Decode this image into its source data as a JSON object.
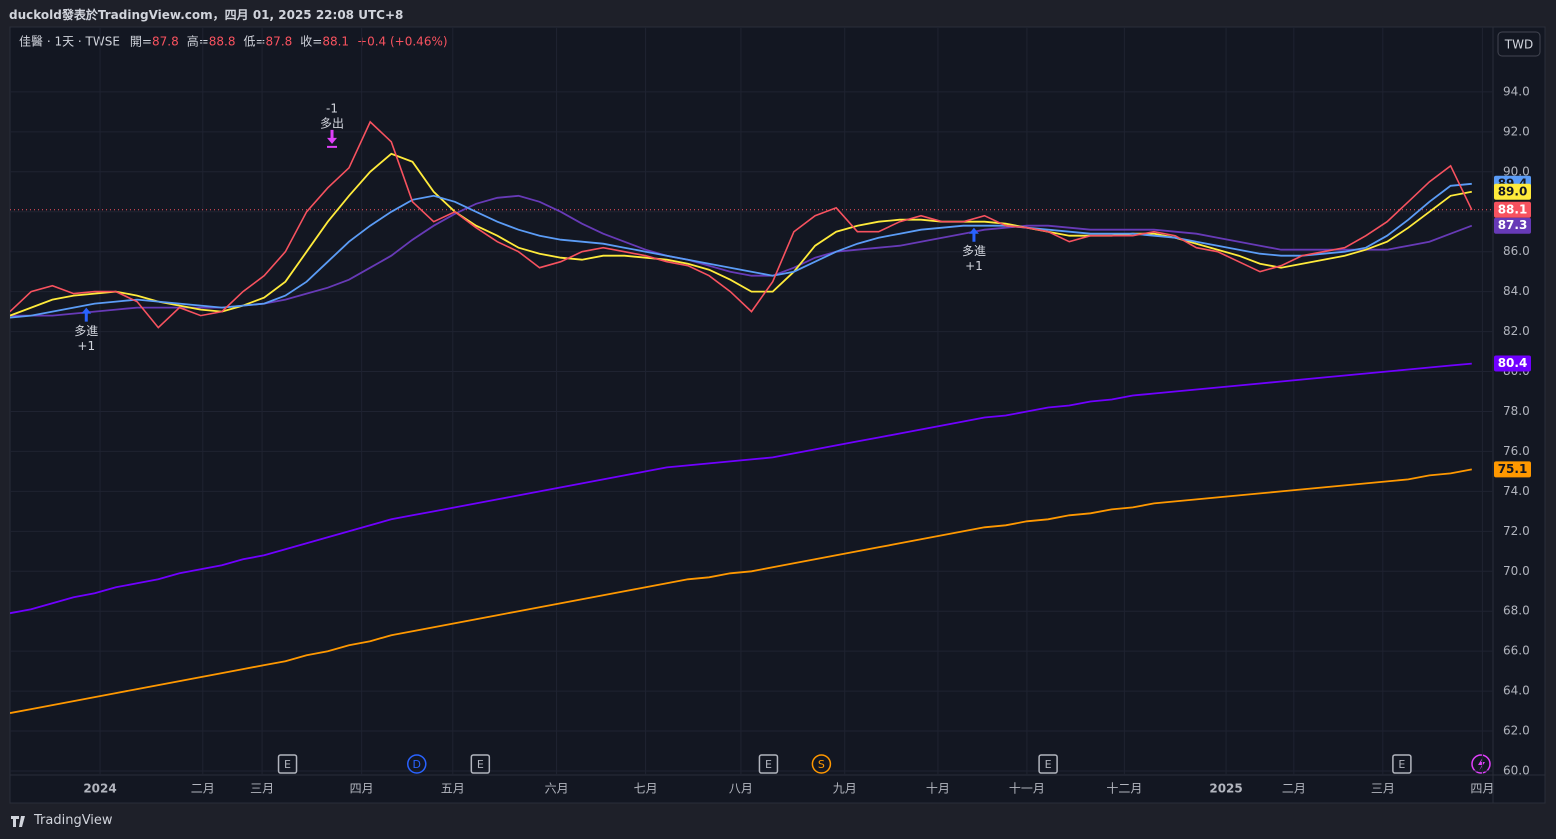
{
  "header": {
    "publisher": "duckold發表於TradingView.com，四月 01, 2025 22:08 UTC+8",
    "footer": "TradingView",
    "currency": "TWD",
    "symbol": "佳醫 · 1天 · TWSE",
    "ohlc": [
      {
        "label": "開=",
        "value": 87.8
      },
      {
        "label": "高=",
        "value": 88.8
      },
      {
        "label": "低=",
        "value": 87.8
      },
      {
        "label": "收=",
        "value": 88.1
      }
    ],
    "change": "+0.4 (+0.46%)"
  },
  "chart_data": {
    "type": "line",
    "grid": true,
    "x": [
      0,
      1,
      2,
      3,
      4,
      5,
      6,
      7,
      8,
      9,
      10,
      11,
      12,
      13,
      14,
      15,
      16,
      17,
      18,
      19,
      20,
      21,
      22,
      23,
      24,
      25,
      26,
      27,
      28,
      29,
      30,
      31,
      32,
      33,
      34,
      35,
      36,
      37,
      38,
      39,
      40,
      41,
      42,
      43,
      44,
      45,
      46,
      47,
      48,
      49,
      50,
      51,
      52,
      53,
      54,
      55,
      56,
      57,
      58,
      59,
      60,
      61,
      62,
      63,
      64,
      65,
      66,
      67,
      68,
      69
    ],
    "xlim": [
      0,
      70
    ],
    "xticks": [
      {
        "value": 4.25,
        "label": "2024"
      },
      {
        "value": 9.1,
        "label": "二月"
      },
      {
        "value": 11.9,
        "label": "三月"
      },
      {
        "value": 16.6,
        "label": "四月"
      },
      {
        "value": 20.9,
        "label": "五月"
      },
      {
        "value": 25.8,
        "label": "六月"
      },
      {
        "value": 30.0,
        "label": "七月"
      },
      {
        "value": 34.5,
        "label": "八月"
      },
      {
        "value": 39.4,
        "label": "九月"
      },
      {
        "value": 43.8,
        "label": "十月"
      },
      {
        "value": 48.0,
        "label": "十一月"
      },
      {
        "value": 52.6,
        "label": "十二月"
      },
      {
        "value": 57.4,
        "label": "2025"
      },
      {
        "value": 60.6,
        "label": "二月"
      },
      {
        "value": 64.8,
        "label": "三月"
      },
      {
        "value": 69.5,
        "label": "四月"
      }
    ],
    "ylim": [
      59.8,
      97.25
    ],
    "yticks": [
      {
        "value": 60,
        "label": "60.0"
      },
      {
        "value": 62,
        "label": "62.0"
      },
      {
        "value": 64,
        "label": "64.0"
      },
      {
        "value": 66,
        "label": "66.0"
      },
      {
        "value": 68,
        "label": "68.0"
      },
      {
        "value": 70,
        "label": "70.0"
      },
      {
        "value": 72,
        "label": "72.0"
      },
      {
        "value": 74,
        "label": "74.0"
      },
      {
        "value": 76,
        "label": "76.0"
      },
      {
        "value": 78,
        "label": "78.0"
      },
      {
        "value": 80,
        "label": "80.0"
      },
      {
        "value": 82,
        "label": "82.0"
      },
      {
        "value": 84,
        "label": "84.0"
      },
      {
        "value": 86,
        "label": "86.0"
      },
      {
        "value": 88,
        "label": "88.0"
      },
      {
        "value": 90,
        "label": "90.0"
      },
      {
        "value": 92,
        "label": "92.0"
      },
      {
        "value": 94,
        "label": "94.0"
      }
    ],
    "series": [
      {
        "color": "#f7525f",
        "tag_text": "#ffffff",
        "last_value_label": "88.1",
        "values": [
          83.0,
          84.0,
          84.3,
          83.9,
          84.0,
          84.0,
          83.5,
          82.2,
          83.2,
          82.8,
          83.0,
          84.0,
          84.8,
          86.0,
          88.0,
          89.2,
          90.2,
          92.5,
          91.5,
          88.5,
          87.5,
          88.0,
          87.2,
          86.5,
          86.0,
          85.2,
          85.5,
          86.0,
          86.2,
          86.0,
          85.8,
          85.5,
          85.3,
          84.8,
          84.0,
          83.0,
          84.5,
          87.0,
          87.8,
          88.2,
          87.0,
          87.0,
          87.5,
          87.8,
          87.5,
          87.5,
          87.8,
          87.3,
          87.2,
          87.0,
          86.5,
          86.8,
          86.8,
          86.8,
          87.0,
          86.8,
          86.2,
          86.0,
          85.5,
          85.0,
          85.3,
          85.8,
          86.0,
          86.2,
          86.8,
          87.5,
          88.5,
          89.5,
          90.3,
          88.1
        ]
      },
      {
        "color": "#5b9cf6",
        "tag_text": "#131722",
        "last_value_label": "89.4",
        "values": [
          82.7,
          82.8,
          83.0,
          83.2,
          83.4,
          83.5,
          83.6,
          83.5,
          83.4,
          83.3,
          83.2,
          83.3,
          83.4,
          83.8,
          84.5,
          85.5,
          86.5,
          87.3,
          88.0,
          88.6,
          88.8,
          88.5,
          88.0,
          87.5,
          87.1,
          86.8,
          86.6,
          86.5,
          86.4,
          86.2,
          86.0,
          85.8,
          85.6,
          85.4,
          85.2,
          85.0,
          84.8,
          85.0,
          85.5,
          86.0,
          86.4,
          86.7,
          86.9,
          87.1,
          87.2,
          87.3,
          87.3,
          87.3,
          87.2,
          87.1,
          87.0,
          86.9,
          86.9,
          86.9,
          86.8,
          86.7,
          86.5,
          86.3,
          86.1,
          85.9,
          85.8,
          85.8,
          85.9,
          86.0,
          86.2,
          86.8,
          87.6,
          88.5,
          89.3,
          89.4
        ]
      },
      {
        "color": "#ffeb3b",
        "tag_text": "#131722",
        "last_value_label": "89.0",
        "values": [
          82.8,
          83.2,
          83.6,
          83.8,
          83.9,
          84.0,
          83.8,
          83.5,
          83.3,
          83.1,
          83.0,
          83.3,
          83.7,
          84.5,
          86.0,
          87.5,
          88.8,
          90.0,
          90.9,
          90.5,
          89.0,
          88.0,
          87.3,
          86.8,
          86.2,
          85.9,
          85.7,
          85.6,
          85.8,
          85.8,
          85.7,
          85.6,
          85.4,
          85.1,
          84.6,
          84.0,
          84.0,
          85.0,
          86.3,
          87.0,
          87.3,
          87.5,
          87.6,
          87.6,
          87.5,
          87.5,
          87.5,
          87.4,
          87.2,
          87.0,
          86.8,
          86.8,
          86.8,
          86.9,
          86.9,
          86.7,
          86.4,
          86.1,
          85.8,
          85.4,
          85.2,
          85.4,
          85.6,
          85.8,
          86.1,
          86.5,
          87.2,
          88.0,
          88.8,
          89.0
        ]
      },
      {
        "color": "#673ab7",
        "tag_text": "#ffffff",
        "last_value_label": "87.3",
        "values": [
          82.8,
          82.8,
          82.8,
          82.9,
          83.0,
          83.1,
          83.2,
          83.2,
          83.2,
          83.2,
          83.2,
          83.3,
          83.4,
          83.6,
          83.9,
          84.2,
          84.6,
          85.2,
          85.8,
          86.6,
          87.3,
          87.9,
          88.4,
          88.7,
          88.8,
          88.5,
          88.0,
          87.4,
          86.9,
          86.5,
          86.1,
          85.8,
          85.6,
          85.3,
          85.0,
          84.8,
          84.8,
          85.2,
          85.7,
          86.0,
          86.1,
          86.2,
          86.3,
          86.5,
          86.7,
          86.9,
          87.1,
          87.2,
          87.3,
          87.3,
          87.2,
          87.1,
          87.1,
          87.1,
          87.1,
          87.0,
          86.9,
          86.7,
          86.5,
          86.3,
          86.1,
          86.1,
          86.1,
          86.1,
          86.1,
          86.1,
          86.3,
          86.5,
          86.9,
          87.3
        ]
      },
      {
        "color": "#7000ff",
        "tag_text": "#ffffff",
        "last_value_label": "80.4",
        "values": [
          67.9,
          68.1,
          68.4,
          68.7,
          68.9,
          69.2,
          69.4,
          69.6,
          69.9,
          70.1,
          70.3,
          70.6,
          70.8,
          71.1,
          71.4,
          71.7,
          72.0,
          72.3,
          72.6,
          72.8,
          73.0,
          73.2,
          73.4,
          73.6,
          73.8,
          74.0,
          74.2,
          74.4,
          74.6,
          74.8,
          75.0,
          75.2,
          75.3,
          75.4,
          75.5,
          75.6,
          75.7,
          75.9,
          76.1,
          76.3,
          76.5,
          76.7,
          76.9,
          77.1,
          77.3,
          77.5,
          77.7,
          77.8,
          78.0,
          78.2,
          78.3,
          78.5,
          78.6,
          78.8,
          78.9,
          79.0,
          79.1,
          79.2,
          79.3,
          79.4,
          79.5,
          79.6,
          79.7,
          79.8,
          79.9,
          80.0,
          80.1,
          80.2,
          80.3,
          80.4
        ]
      },
      {
        "color": "#ff9800",
        "tag_text": "#131722",
        "last_value_label": "75.1",
        "values": [
          62.9,
          63.1,
          63.3,
          63.5,
          63.7,
          63.9,
          64.1,
          64.3,
          64.5,
          64.7,
          64.9,
          65.1,
          65.3,
          65.5,
          65.8,
          66.0,
          66.3,
          66.5,
          66.8,
          67.0,
          67.2,
          67.4,
          67.6,
          67.8,
          68.0,
          68.2,
          68.4,
          68.6,
          68.8,
          69.0,
          69.2,
          69.4,
          69.6,
          69.7,
          69.9,
          70.0,
          70.2,
          70.4,
          70.6,
          70.8,
          71.0,
          71.2,
          71.4,
          71.6,
          71.8,
          72.0,
          72.2,
          72.3,
          72.5,
          72.6,
          72.8,
          72.9,
          73.1,
          73.2,
          73.4,
          73.5,
          73.6,
          73.7,
          73.8,
          73.9,
          74.0,
          74.1,
          74.2,
          74.3,
          74.4,
          74.5,
          74.6,
          74.8,
          74.9,
          75.1
        ]
      }
    ],
    "annotations": [
      {
        "x": 3.6,
        "y": 83.2,
        "direction": "up",
        "color": "#2962ff",
        "lines": [
          "多進",
          "+1"
        ]
      },
      {
        "x": 15.2,
        "y": 91.4,
        "direction": "down",
        "color": "#e040fb",
        "lines": [
          "-1",
          "多出"
        ]
      },
      {
        "x": 45.5,
        "y": 87.2,
        "direction": "up",
        "color": "#2962ff",
        "lines": [
          "多進",
          "+1"
        ]
      }
    ],
    "events": [
      {
        "x": 13.1,
        "label": "E",
        "color": "#b2b5be",
        "shape": "box"
      },
      {
        "x": 19.2,
        "label": "D",
        "color": "#2962ff",
        "shape": "circle"
      },
      {
        "x": 22.2,
        "label": "E",
        "color": "#b2b5be",
        "shape": "box"
      },
      {
        "x": 35.8,
        "label": "E",
        "color": "#b2b5be",
        "shape": "box"
      },
      {
        "x": 38.3,
        "label": "S",
        "color": "#ff9800",
        "shape": "circle"
      },
      {
        "x": 49.0,
        "label": "E",
        "color": "#b2b5be",
        "shape": "box"
      },
      {
        "x": 65.7,
        "label": "E",
        "color": "#b2b5be",
        "shape": "box"
      }
    ]
  }
}
